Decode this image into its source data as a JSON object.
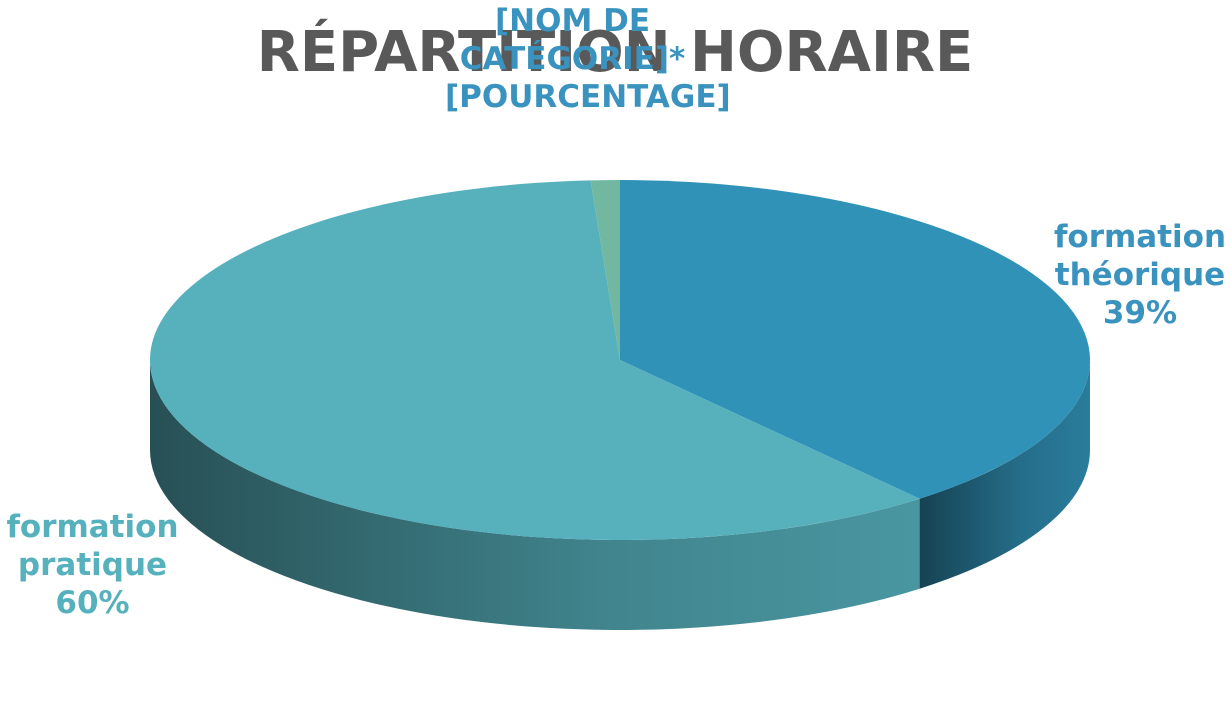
{
  "chart_data": {
    "type": "pie3d",
    "title": "RÉPARTITION HORAIRE",
    "categories": [
      "formation théorique",
      "formation pratique",
      "[NOM DE CATÉGORIE]*"
    ],
    "values": [
      39,
      60,
      1
    ],
    "value_labels": [
      "39%",
      "60%",
      "[POURCENTAGE]"
    ],
    "colors": [
      "#3192b8",
      "#56b1bd",
      "#72b8a0"
    ],
    "label_colors": [
      "#3a93bf",
      "#56b1bd",
      "#3a93bf"
    ]
  }
}
